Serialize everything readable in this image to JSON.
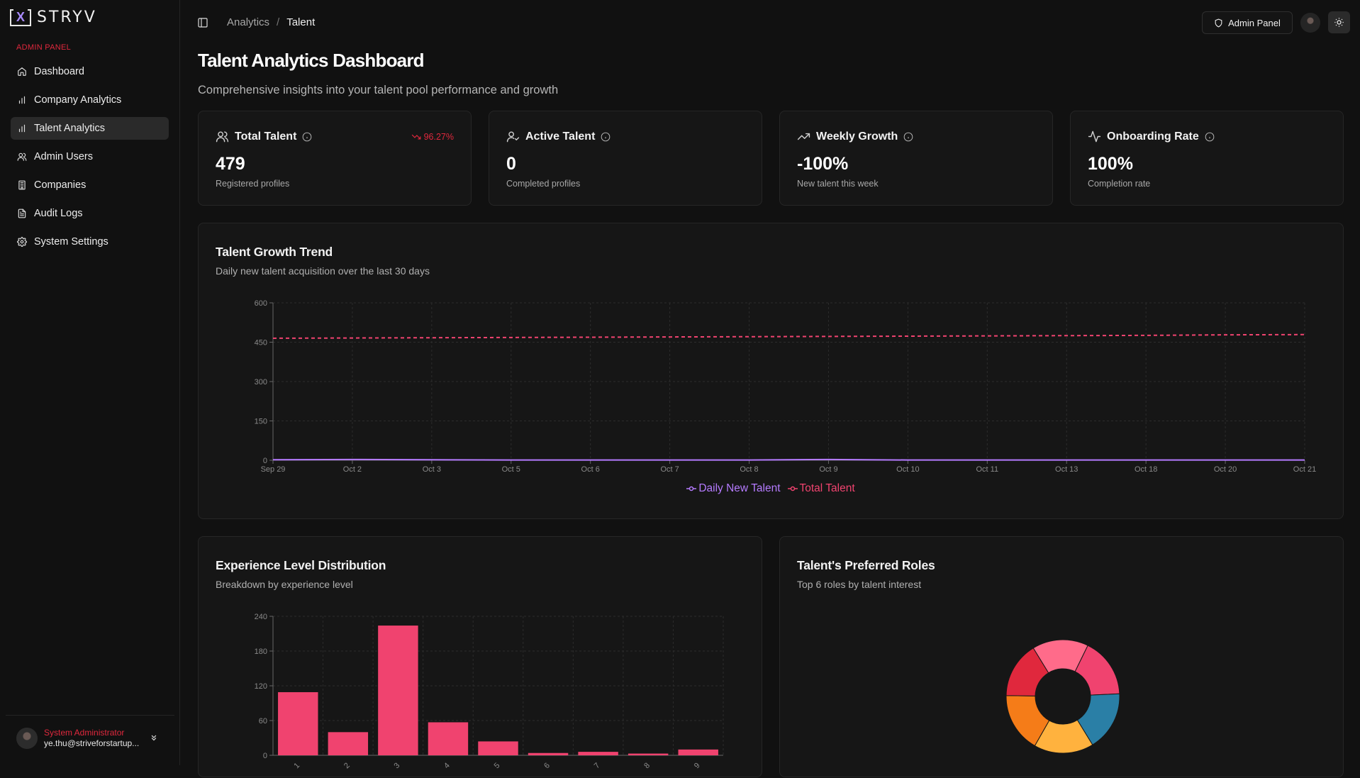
{
  "app": {
    "logo_text": "STRYV",
    "logo_mark": "X"
  },
  "sidebar": {
    "section_label": "ADMIN PANEL",
    "items": [
      {
        "label": "Dashboard",
        "icon": "home-icon",
        "active": false
      },
      {
        "label": "Company Analytics",
        "icon": "bar-chart-icon",
        "active": false
      },
      {
        "label": "Talent Analytics",
        "icon": "bar-chart-icon",
        "active": true
      },
      {
        "label": "Admin Users",
        "icon": "users-icon",
        "active": false
      },
      {
        "label": "Companies",
        "icon": "building-icon",
        "active": false
      },
      {
        "label": "Audit Logs",
        "icon": "file-text-icon",
        "active": false
      },
      {
        "label": "System Settings",
        "icon": "gear-icon",
        "active": false
      }
    ],
    "user": {
      "role": "System Administrator",
      "email": "ye.thu@striveforstartup..."
    }
  },
  "header": {
    "breadcrumb": {
      "parent": "Analytics",
      "separator": "/",
      "current": "Talent"
    },
    "admin_button": "Admin Panel"
  },
  "page": {
    "title": "Talent Analytics Dashboard",
    "subtitle": "Comprehensive insights into your talent pool performance and growth"
  },
  "stats": [
    {
      "title": "Total Talent",
      "value": "479",
      "desc": "Registered profiles",
      "trend": "96.27%",
      "icon": "users-icon"
    },
    {
      "title": "Active Talent",
      "value": "0",
      "desc": "Completed profiles",
      "trend": null,
      "icon": "user-check-icon"
    },
    {
      "title": "Weekly Growth",
      "value": "-100%",
      "desc": "New talent this week",
      "trend": null,
      "icon": "trending-up-icon"
    },
    {
      "title": "Onboarding Rate",
      "value": "100%",
      "desc": "Completion rate",
      "trend": null,
      "icon": "activity-icon"
    }
  ],
  "colors": {
    "accent_red": "#e0283d",
    "series_purple": "#b57bff",
    "series_pink": "#f0436f"
  },
  "charts": {
    "growth": {
      "title": "Talent Growth Trend",
      "subtitle": "Daily new talent acquisition over the last 30 days"
    },
    "experience": {
      "title": "Experience Level Distribution",
      "subtitle": "Breakdown by experience level"
    },
    "roles": {
      "title": "Talent's Preferred Roles",
      "subtitle": "Top 6 roles by talent interest"
    }
  },
  "chart_data": [
    {
      "type": "line",
      "x": [
        "Sep 29",
        "Oct 2",
        "Oct 3",
        "Oct 5",
        "Oct 6",
        "Oct 7",
        "Oct 8",
        "Oct 9",
        "Oct 10",
        "Oct 11",
        "Oct 13",
        "Oct 18",
        "Oct 20",
        "Oct 21"
      ],
      "ylim": [
        0,
        600
      ],
      "yticks": [
        0,
        150,
        300,
        450,
        600
      ],
      "grid": true,
      "legend": "bottom",
      "series": [
        {
          "name": "Daily New Talent",
          "color": "#b57bff",
          "dash": false,
          "values": [
            2,
            3,
            2,
            1,
            1,
            1,
            1,
            3,
            1,
            1,
            1,
            1,
            1,
            1
          ]
        },
        {
          "name": "Total Talent",
          "color": "#f0436f",
          "dash": true,
          "values": [
            465,
            466,
            467,
            468,
            469,
            470,
            471,
            472,
            473,
            474,
            475,
            476,
            478,
            479
          ]
        }
      ]
    },
    {
      "type": "bar",
      "categories": [
        "1",
        "2",
        "3",
        "4",
        "5",
        "6",
        "7",
        "8",
        "9"
      ],
      "values": [
        109,
        40,
        224,
        57,
        24,
        4,
        6,
        3,
        10
      ],
      "ylim": [
        0,
        240
      ],
      "yticks": [
        0,
        60,
        120,
        180,
        240
      ],
      "color": "#f0436f",
      "grid": true
    },
    {
      "type": "pie",
      "values": [
        16,
        17,
        17,
        17,
        17,
        16
      ],
      "colors": [
        "#ff6b8a",
        "#f0436f",
        "#2a7fa6",
        "#ffb23e",
        "#f57c18",
        "#e0283d"
      ]
    }
  ]
}
